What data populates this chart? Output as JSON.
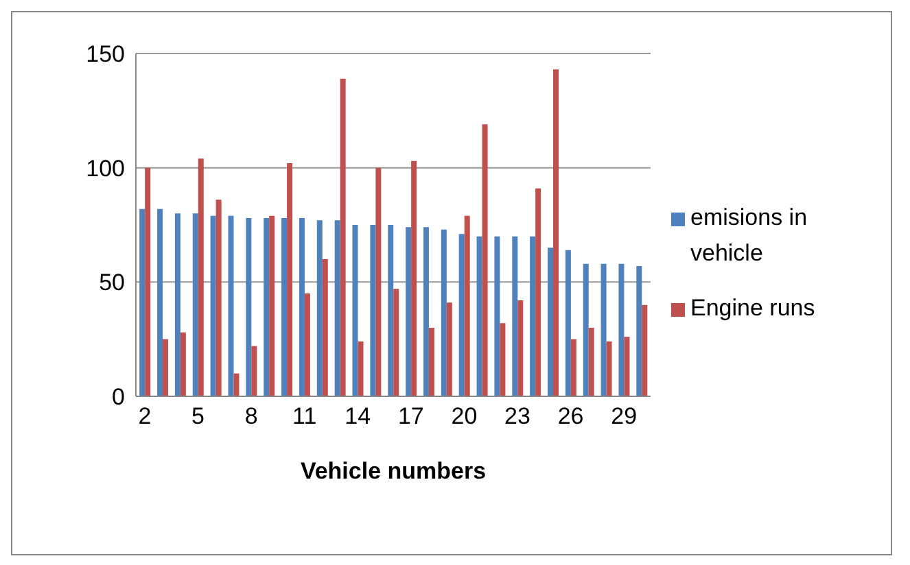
{
  "chart_data": {
    "type": "bar",
    "xlabel": "Vehicle numbers",
    "categories": [
      "2",
      null,
      null,
      "5",
      null,
      null,
      "8",
      null,
      null,
      "11",
      null,
      null,
      "14",
      null,
      null,
      "17",
      null,
      null,
      "20",
      null,
      null,
      "23",
      null,
      null,
      "26",
      null,
      null,
      "29",
      null
    ],
    "series": [
      {
        "name": "emisions in vehicle",
        "color": "#4f81bd",
        "values": [
          82,
          82,
          80,
          80,
          79,
          79,
          78,
          78,
          78,
          78,
          77,
          77,
          75,
          75,
          75,
          74,
          74,
          73,
          71,
          70,
          70,
          70,
          70,
          65,
          64,
          58,
          58,
          58,
          57
        ]
      },
      {
        "name": "Engine runs",
        "color": "#c0504d",
        "values": [
          100,
          25,
          28,
          104,
          86,
          10,
          22,
          79,
          102,
          45,
          60,
          139,
          24,
          100,
          47,
          103,
          30,
          41,
          79,
          119,
          32,
          42,
          91,
          143,
          25,
          30,
          24,
          26,
          40
        ]
      }
    ],
    "ylim": [
      0,
      150
    ],
    "yticks": [
      0,
      50,
      100,
      150
    ],
    "grid": "y",
    "legend": "right"
  }
}
